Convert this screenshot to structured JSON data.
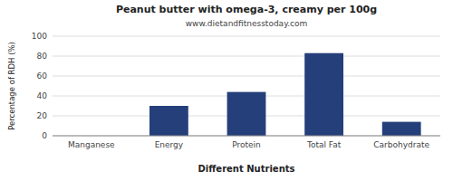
{
  "chart_data": {
    "type": "bar",
    "title": "Peanut butter with omega-3, creamy per 100g",
    "subtitle": "www.dietandfitnesstoday.com",
    "xlabel": "Different Nutrients",
    "ylabel": "Percentage of RDH (%)",
    "categories": [
      "Manganese",
      "Energy",
      "Protein",
      "Total Fat",
      "Carbohydrate"
    ],
    "values": [
      0,
      30,
      44,
      83,
      14
    ],
    "color": "#253f7a",
    "ylim": [
      0,
      100
    ],
    "yticks": [
      0,
      20,
      40,
      60,
      80,
      100
    ],
    "grid": true
  }
}
